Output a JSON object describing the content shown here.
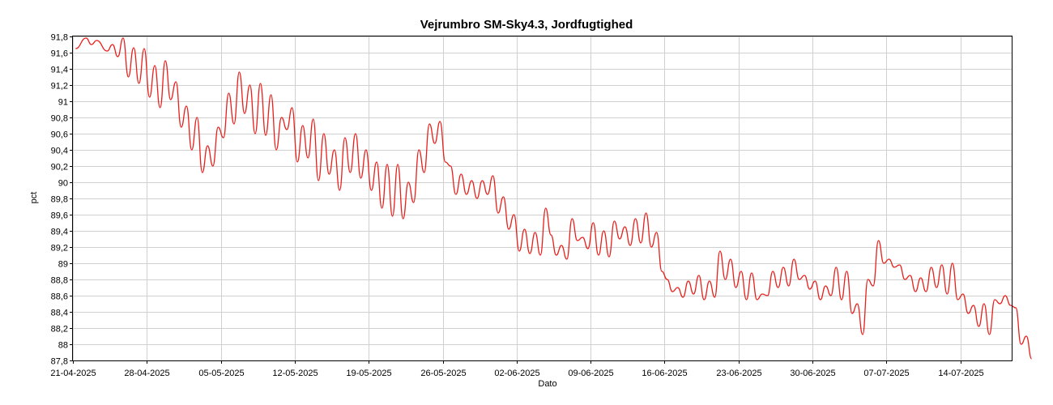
{
  "chart_data": {
    "type": "line",
    "title": "Vejrumbro SM-Sky4.3, Jordfugtighed",
    "xlabel": "Dato",
    "ylabel": "pct",
    "ylim": [
      87.8,
      91.8
    ],
    "y_ticks": [
      "91,8",
      "91,6",
      "91,4",
      "91,2",
      "91",
      "90,8",
      "90,6",
      "90,4",
      "90,2",
      "90",
      "89,8",
      "89,6",
      "89,4",
      "89,2",
      "89",
      "88,8",
      "88,6",
      "88,4",
      "88,2",
      "88",
      "87,8"
    ],
    "y_tick_values": [
      91.8,
      91.6,
      91.4,
      91.2,
      91.0,
      90.8,
      90.6,
      90.4,
      90.2,
      90.0,
      89.8,
      89.6,
      89.4,
      89.2,
      89.0,
      88.8,
      88.6,
      88.4,
      88.2,
      88.0,
      87.8
    ],
    "x_ticks": [
      "21-04-2025",
      "28-04-2025",
      "05-05-2025",
      "12-05-2025",
      "19-05-2025",
      "26-05-2025",
      "02-06-2025",
      "09-06-2025",
      "16-06-2025",
      "23-06-2025",
      "30-06-2025",
      "07-07-2025",
      "14-07-2025"
    ],
    "grid": true,
    "legend": "none",
    "color": "#e8201c",
    "series": [
      {
        "x": [
          "2025-04-21",
          "2025-04-22",
          "2025-04-22",
          "2025-04-23",
          "2025-04-24",
          "2025-04-24",
          "2025-04-25",
          "2025-04-25",
          "2025-04-26",
          "2025-04-26",
          "2025-04-27",
          "2025-04-27",
          "2025-04-28",
          "2025-04-28",
          "2025-04-29",
          "2025-04-29",
          "2025-04-30",
          "2025-04-30",
          "2025-05-01",
          "2025-05-01",
          "2025-05-02",
          "2025-05-02",
          "2025-05-03",
          "2025-05-03",
          "2025-05-04",
          "2025-05-04",
          "2025-05-05",
          "2025-05-05",
          "2025-05-06",
          "2025-05-06",
          "2025-05-07",
          "2025-05-07",
          "2025-05-08",
          "2025-05-08",
          "2025-05-09",
          "2025-05-09",
          "2025-05-10",
          "2025-05-10",
          "2025-05-11",
          "2025-05-11",
          "2025-05-12",
          "2025-05-12",
          "2025-05-13",
          "2025-05-13",
          "2025-05-14",
          "2025-05-14",
          "2025-05-15",
          "2025-05-15",
          "2025-05-16",
          "2025-05-16",
          "2025-05-17",
          "2025-05-17",
          "2025-05-18",
          "2025-05-18",
          "2025-05-19",
          "2025-05-19",
          "2025-05-20",
          "2025-05-20",
          "2025-05-21",
          "2025-05-21",
          "2025-05-22",
          "2025-05-22",
          "2025-05-23",
          "2025-05-23",
          "2025-05-24",
          "2025-05-24",
          "2025-05-25",
          "2025-05-25",
          "2025-05-26",
          "2025-05-26",
          "2025-05-27",
          "2025-05-27",
          "2025-05-28",
          "2025-05-28",
          "2025-05-29",
          "2025-05-29",
          "2025-05-30",
          "2025-05-30",
          "2025-05-31",
          "2025-05-31",
          "2025-06-01",
          "2025-06-01",
          "2025-06-02",
          "2025-06-02",
          "2025-06-03",
          "2025-06-03",
          "2025-06-04",
          "2025-06-04",
          "2025-06-05",
          "2025-06-05",
          "2025-06-06",
          "2025-06-06",
          "2025-06-07",
          "2025-06-07",
          "2025-06-08",
          "2025-06-08",
          "2025-06-09",
          "2025-06-09",
          "2025-06-10",
          "2025-06-10",
          "2025-06-11",
          "2025-06-11",
          "2025-06-12",
          "2025-06-12",
          "2025-06-13",
          "2025-06-13",
          "2025-06-14",
          "2025-06-14",
          "2025-06-15",
          "2025-06-15",
          "2025-06-16",
          "2025-06-16",
          "2025-06-17",
          "2025-06-17",
          "2025-06-18",
          "2025-06-18",
          "2025-06-19",
          "2025-06-19",
          "2025-06-20",
          "2025-06-20",
          "2025-06-21",
          "2025-06-21",
          "2025-06-22",
          "2025-06-22",
          "2025-06-23",
          "2025-06-23",
          "2025-06-24",
          "2025-06-24",
          "2025-06-25",
          "2025-06-25",
          "2025-06-26",
          "2025-06-26",
          "2025-06-27",
          "2025-06-27",
          "2025-06-28",
          "2025-06-28",
          "2025-06-29",
          "2025-06-29",
          "2025-06-30",
          "2025-06-30",
          "2025-07-01",
          "2025-07-01",
          "2025-07-02",
          "2025-07-02",
          "2025-07-03",
          "2025-07-03",
          "2025-07-04",
          "2025-07-04",
          "2025-07-05",
          "2025-07-05",
          "2025-07-06",
          "2025-07-06",
          "2025-07-07",
          "2025-07-07",
          "2025-07-08",
          "2025-07-08",
          "2025-07-09",
          "2025-07-09",
          "2025-07-10",
          "2025-07-10",
          "2025-07-11",
          "2025-07-11",
          "2025-07-12",
          "2025-07-12",
          "2025-07-13",
          "2025-07-13",
          "2025-07-14",
          "2025-07-14",
          "2025-07-15",
          "2025-07-15",
          "2025-07-16",
          "2025-07-16",
          "2025-07-17",
          "2025-07-17",
          "2025-07-18",
          "2025-07-18",
          "2025-07-19",
          "2025-07-19",
          "2025-07-20",
          "2025-07-20"
        ],
        "y": [
          91.65,
          91.78,
          91.7,
          91.75,
          91.62,
          91.7,
          91.55,
          91.78,
          91.3,
          91.66,
          91.22,
          91.65,
          91.05,
          91.44,
          90.92,
          91.5,
          91.02,
          91.24,
          90.68,
          90.94,
          90.4,
          90.8,
          90.12,
          90.45,
          90.2,
          90.68,
          90.55,
          91.1,
          90.72,
          91.36,
          90.85,
          91.2,
          90.6,
          91.22,
          90.58,
          91.08,
          90.4,
          90.8,
          90.65,
          90.92,
          90.25,
          90.7,
          90.3,
          90.78,
          90.02,
          90.6,
          90.1,
          90.4,
          89.9,
          90.55,
          90.12,
          90.6,
          90.05,
          90.4,
          89.9,
          90.25,
          89.68,
          90.22,
          89.58,
          90.22,
          89.55,
          90.0,
          89.75,
          90.4,
          90.12,
          90.72,
          90.48,
          90.75,
          90.25,
          90.2,
          89.85,
          90.1,
          89.85,
          90.02,
          89.8,
          90.02,
          89.85,
          90.08,
          89.62,
          89.82,
          89.42,
          89.6,
          89.15,
          89.42,
          89.12,
          89.38,
          89.1,
          89.68,
          89.35,
          89.1,
          89.22,
          89.05,
          89.55,
          89.28,
          89.32,
          89.18,
          89.5,
          89.1,
          89.4,
          89.08,
          89.52,
          89.3,
          89.45,
          89.22,
          89.55,
          89.25,
          89.62,
          89.2,
          89.38,
          88.9,
          88.8,
          88.65,
          88.7,
          88.58,
          88.78,
          88.62,
          88.85,
          88.55,
          88.78,
          88.58,
          89.15,
          88.8,
          89.05,
          88.7,
          88.9,
          88.55,
          88.88,
          88.55,
          88.62,
          88.6,
          88.9,
          88.7,
          88.95,
          88.72,
          89.05,
          88.8,
          88.85,
          88.68,
          88.78,
          88.55,
          88.72,
          88.6,
          88.95,
          88.55,
          88.9,
          88.38,
          88.5,
          88.12,
          88.8,
          88.72,
          89.28,
          89.0,
          89.05,
          88.95,
          88.98,
          88.8,
          88.85,
          88.65,
          88.82,
          88.65,
          88.95,
          88.7,
          88.98,
          88.62,
          89.0,
          88.55,
          88.62,
          88.38,
          88.48,
          88.22,
          88.5,
          88.12,
          88.55,
          88.5,
          88.6,
          88.48,
          88.45,
          88.0,
          88.1,
          87.82
        ]
      }
    ]
  }
}
